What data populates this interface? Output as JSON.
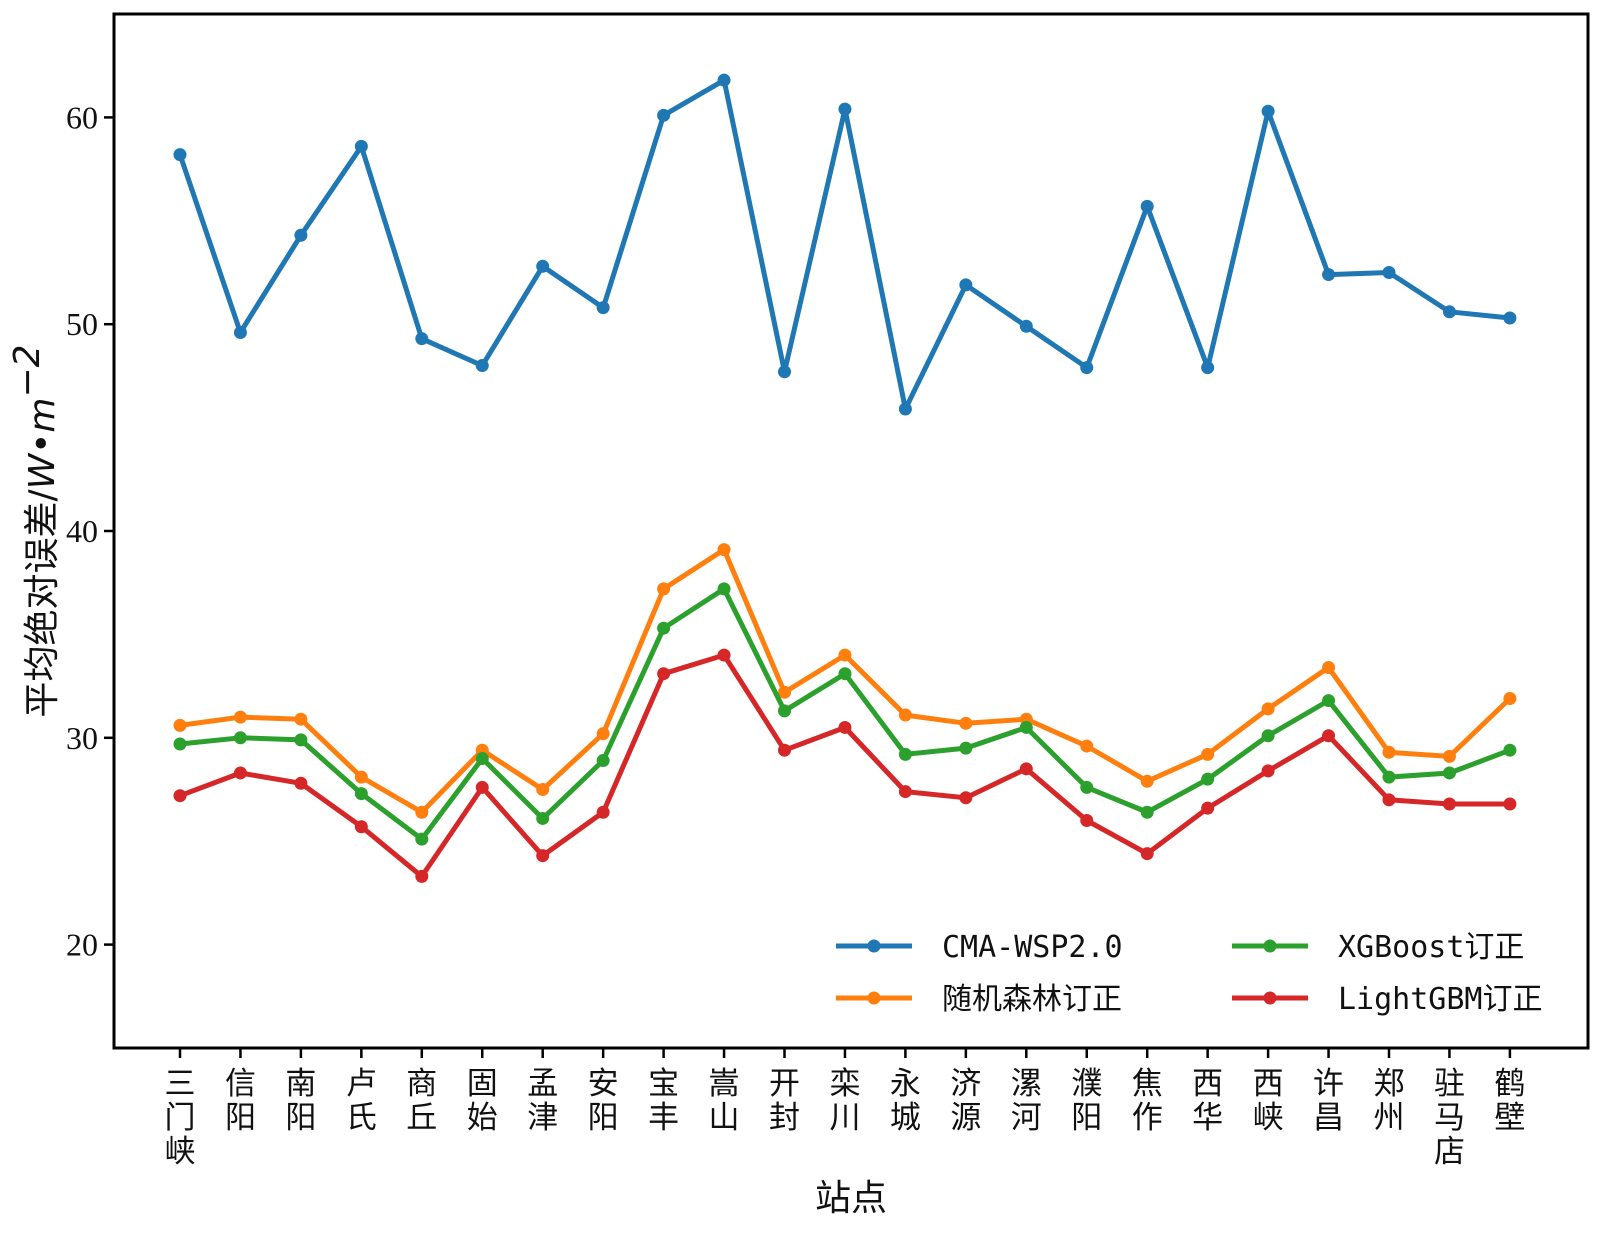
{
  "chart_data": {
    "type": "line",
    "title": "",
    "xlabel": "站点",
    "ylabel": {
      "text": "平均绝对误差/",
      "unit_base": "W•m",
      "unit_exp": "−2"
    },
    "ylim": [
      15,
      65
    ],
    "yticks": [
      20,
      30,
      40,
      50,
      60
    ],
    "grid": false,
    "legend": {
      "placement": "lower-right",
      "columns": 2
    },
    "categories": [
      "三门峡",
      "信阳",
      "南阳",
      "卢氏",
      "商丘",
      "固始",
      "孟津",
      "安阳",
      "宝丰",
      "嵩山",
      "开封",
      "栾川",
      "永城",
      "济源",
      "漯河",
      "濮阳",
      "焦作",
      "西华",
      "西峡",
      "许昌",
      "郑州",
      "驻马店",
      "鹤壁"
    ],
    "series": [
      {
        "name": "CMA-WSP2.0",
        "color": "#1f77b4",
        "values": [
          58.2,
          49.6,
          54.3,
          58.6,
          49.3,
          48.0,
          52.8,
          50.8,
          60.1,
          61.8,
          47.7,
          60.4,
          45.9,
          51.9,
          49.9,
          47.9,
          55.7,
          47.9,
          60.3,
          52.4,
          52.5,
          50.6,
          50.3
        ]
      },
      {
        "name": "随机森林订正",
        "color": "#ff7f0e",
        "values": [
          30.6,
          31.0,
          30.9,
          28.1,
          26.4,
          29.4,
          27.5,
          30.2,
          37.2,
          39.1,
          32.2,
          34.0,
          31.1,
          30.7,
          30.9,
          29.6,
          27.9,
          29.2,
          31.4,
          33.4,
          29.3,
          29.1,
          31.9
        ]
      },
      {
        "name": "XGBoost订正",
        "color": "#2ca02c",
        "values": [
          29.7,
          30.0,
          29.9,
          27.3,
          25.1,
          29.0,
          26.1,
          28.9,
          35.3,
          37.2,
          31.3,
          33.1,
          29.2,
          29.5,
          30.5,
          27.6,
          26.4,
          28.0,
          30.1,
          31.8,
          28.1,
          28.3,
          29.4
        ]
      },
      {
        "name": "LightGBM订正",
        "color": "#d62728",
        "values": [
          27.2,
          28.3,
          27.8,
          25.7,
          23.3,
          27.6,
          24.3,
          26.4,
          33.1,
          34.0,
          29.4,
          30.5,
          27.4,
          27.1,
          28.5,
          26.0,
          24.4,
          26.6,
          28.4,
          30.1,
          27.0,
          26.8,
          26.8
        ]
      }
    ]
  }
}
